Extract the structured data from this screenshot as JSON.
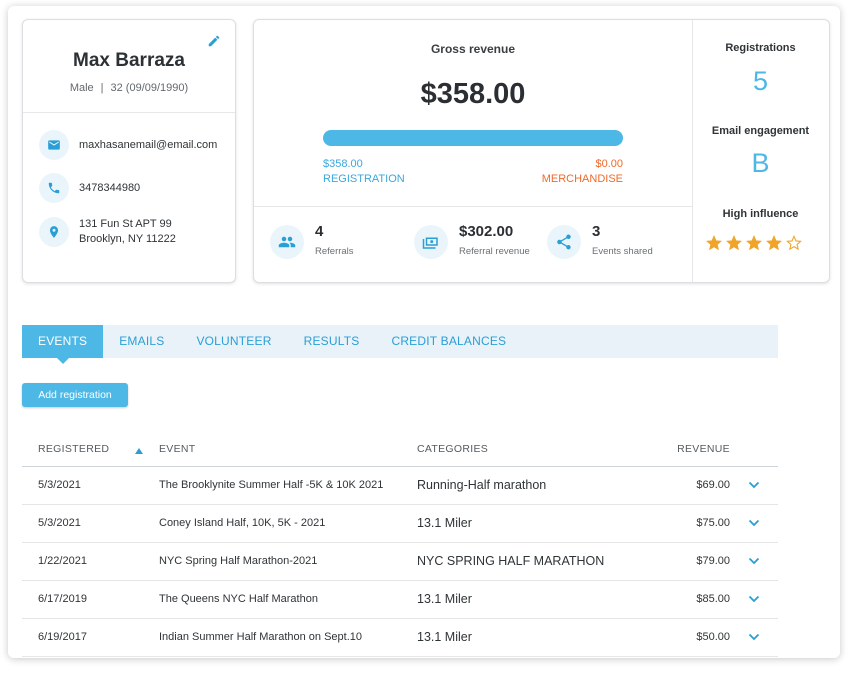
{
  "profile": {
    "name": "Max Barraza",
    "gender": "Male",
    "separator": "|",
    "age_dob": "32 (09/09/1990)",
    "email": "maxhasanemail@email.com",
    "phone": "3478344980",
    "address_line1": "131 Fun St APT 99",
    "address_line2": "Brooklyn, NY 11222"
  },
  "revenue": {
    "label": "Gross revenue",
    "amount": "$358.00",
    "registration_amount": "$358.00",
    "registration_label": "REGISTRATION",
    "merchandise_amount": "$0.00",
    "merchandise_label": "MERCHANDISE",
    "registration_share": 1.0
  },
  "stats": {
    "referrals_value": "4",
    "referrals_label": "Referrals",
    "referral_revenue_value": "$302.00",
    "referral_revenue_label": "Referral revenue",
    "events_shared_value": "3",
    "events_shared_label": "Events shared"
  },
  "side": {
    "registrations_label": "Registrations",
    "registrations_value": "5",
    "email_engagement_label": "Email engagement",
    "email_engagement_value": "B",
    "influence_label": "High influence",
    "influence_stars": 4,
    "influence_stars_max": 5
  },
  "tabs": [
    "EVENTS",
    "EMAILS",
    "VOLUNTEER",
    "RESULTS",
    "CREDIT BALANCES"
  ],
  "add_button": "Add registration",
  "table": {
    "headers": {
      "registered": "REGISTERED",
      "event": "EVENT",
      "categories": "CATEGORIES",
      "revenue": "REVENUE"
    },
    "rows": [
      {
        "date": "5/3/2021",
        "event": "The Brooklynite Summer Half -5K & 10K 2021",
        "category": "Running-Half marathon",
        "revenue": "$69.00"
      },
      {
        "date": "5/3/2021",
        "event": "Coney Island Half, 10K, 5K - 2021",
        "category": "13.1 Miler",
        "revenue": "$75.00"
      },
      {
        "date": "1/22/2021",
        "event": "NYC Spring Half Marathon-2021",
        "category": "NYC SPRING HALF MARATHON",
        "revenue": "$79.00"
      },
      {
        "date": "6/17/2019",
        "event": "The Queens NYC Half Marathon",
        "category": "13.1 Miler",
        "revenue": "$85.00"
      },
      {
        "date": "6/19/2017",
        "event": "Indian Summer Half Marathon on Sept.10",
        "category": "13.1 Miler",
        "revenue": "$50.00"
      }
    ]
  },
  "colors": {
    "accent": "#4db8e5",
    "merchandise": "#ef6a2a",
    "star": "#f0a429"
  }
}
